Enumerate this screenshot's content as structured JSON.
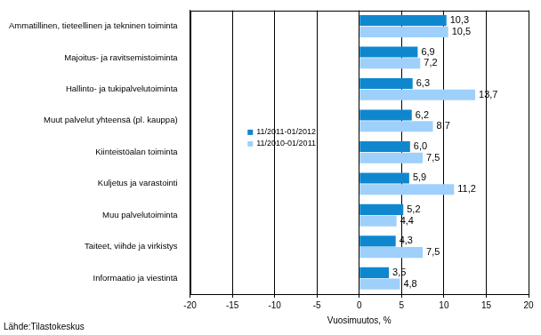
{
  "chart_data": {
    "type": "bar",
    "orientation": "horizontal",
    "categories": [
      "Ammatillinen, tieteellinen ja tekninen toiminta",
      "Majoitus- ja ravitsemistoiminta",
      "Hallinto- ja tukipalvelutoiminta",
      "Muut palvelut yhteensä (pl. kauppa)",
      "Kiinteistöalan toiminta",
      "Kuljetus ja varastointi",
      "Muu palvelutoiminta",
      "Taiteet, viihde ja virkistys",
      "Informaatio ja viestintä"
    ],
    "series": [
      {
        "name": "11/2011-01/2012",
        "color": "#0f87cf",
        "values": [
          10.3,
          6.9,
          6.3,
          6.2,
          6.0,
          5.9,
          5.2,
          4.3,
          3.5
        ],
        "value_labels": [
          "10,3",
          "6,9",
          "6,3",
          "6,2",
          "6,0",
          "5,9",
          "5,2",
          "4,3",
          "3,5"
        ]
      },
      {
        "name": "11/2010-01/2011",
        "color": "#9fd0fb",
        "values": [
          10.5,
          7.2,
          13.7,
          8.7,
          7.5,
          11.2,
          4.4,
          7.5,
          4.8
        ],
        "value_labels": [
          "10,5",
          "7,2",
          "13,7",
          "8,7",
          "7,5",
          "11,2",
          "4,4",
          "7,5",
          "4,8"
        ]
      }
    ],
    "x_label": "Vuosimuutos, %",
    "xlim": [
      -20,
      20
    ],
    "xticks": [
      -20,
      -15,
      -10,
      -5,
      0,
      5,
      10,
      15,
      20
    ],
    "grid": true,
    "legend": "left",
    "data_labels": true,
    "note": "Lähde:Tilastokeskus"
  }
}
